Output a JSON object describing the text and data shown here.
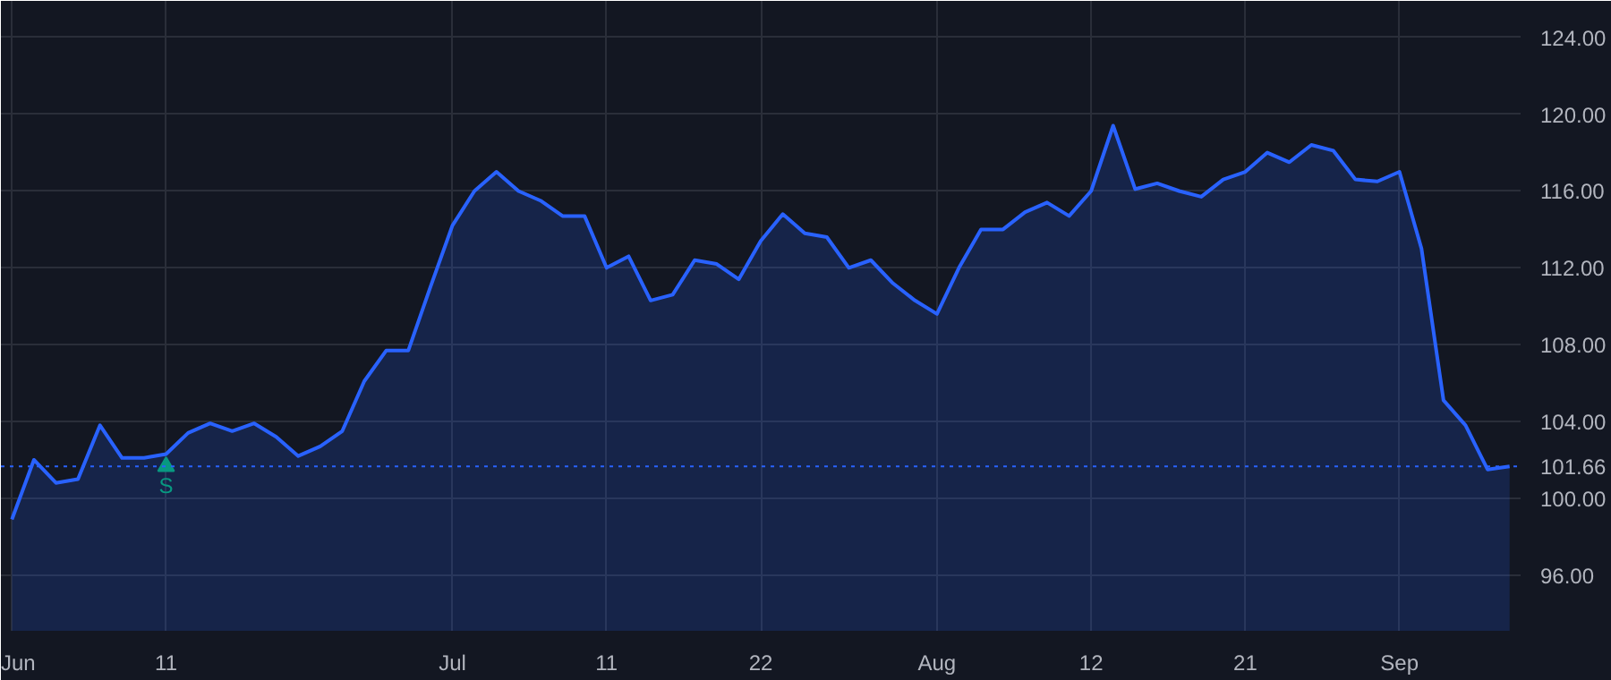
{
  "chart_data": {
    "type": "area",
    "categories": [
      "Jun",
      null,
      null,
      null,
      null,
      null,
      null,
      "11",
      null,
      null,
      null,
      null,
      null,
      null,
      null,
      null,
      null,
      null,
      null,
      null,
      "Jul",
      null,
      null,
      null,
      null,
      null,
      null,
      "11",
      null,
      null,
      null,
      null,
      null,
      null,
      "22",
      null,
      null,
      null,
      null,
      null,
      null,
      null,
      "Aug",
      null,
      null,
      null,
      null,
      null,
      null,
      "12",
      null,
      null,
      null,
      null,
      null,
      null,
      "21",
      null,
      null,
      null,
      null,
      null,
      null,
      "Sep",
      null,
      null,
      null,
      null,
      null
    ],
    "series": [
      {
        "color": "#2962ff",
        "values": [
          98.9,
          102.0,
          100.8,
          101.0,
          103.8,
          102.1,
          102.1,
          102.3,
          103.4,
          103.9,
          103.5,
          103.9,
          103.2,
          102.2,
          102.7,
          103.5,
          106.1,
          107.7,
          107.7,
          111.0,
          114.2,
          116.0,
          117.0,
          116.0,
          115.5,
          114.7,
          114.7,
          112.0,
          112.6,
          110.3,
          110.6,
          112.4,
          112.2,
          111.4,
          113.4,
          114.8,
          113.8,
          113.6,
          112.0,
          112.4,
          111.2,
          110.3,
          109.6,
          112.0,
          114.0,
          114.0,
          114.9,
          115.4,
          114.7,
          116.0,
          119.4,
          116.1,
          116.4,
          116.0,
          115.7,
          116.6,
          117.0,
          118.0,
          117.5,
          118.4,
          118.1,
          116.6,
          116.5,
          117.0,
          113.0,
          105.1,
          103.8,
          101.5,
          101.66
        ]
      }
    ],
    "ylim": [
      93.1,
      125.9
    ],
    "yticks": [
      {
        "value": 96,
        "label": "96.00"
      },
      {
        "value": 100,
        "label": "100.00"
      },
      {
        "value": 104,
        "label": "104.00"
      },
      {
        "value": 108,
        "label": "108.00"
      },
      {
        "value": 112,
        "label": "112.00"
      },
      {
        "value": 116,
        "label": "116.00"
      },
      {
        "value": 120,
        "label": "120.00"
      },
      {
        "value": 124,
        "label": "124.00"
      }
    ],
    "grid": true,
    "ref_lines": [
      {
        "axis": "y",
        "value": 101.66,
        "label": "101.66",
        "color": "#2962ff",
        "line_style": "dotted"
      }
    ],
    "annotations": [
      {
        "text": "S",
        "x": "11",
        "y": 101.66
      }
    ]
  }
}
